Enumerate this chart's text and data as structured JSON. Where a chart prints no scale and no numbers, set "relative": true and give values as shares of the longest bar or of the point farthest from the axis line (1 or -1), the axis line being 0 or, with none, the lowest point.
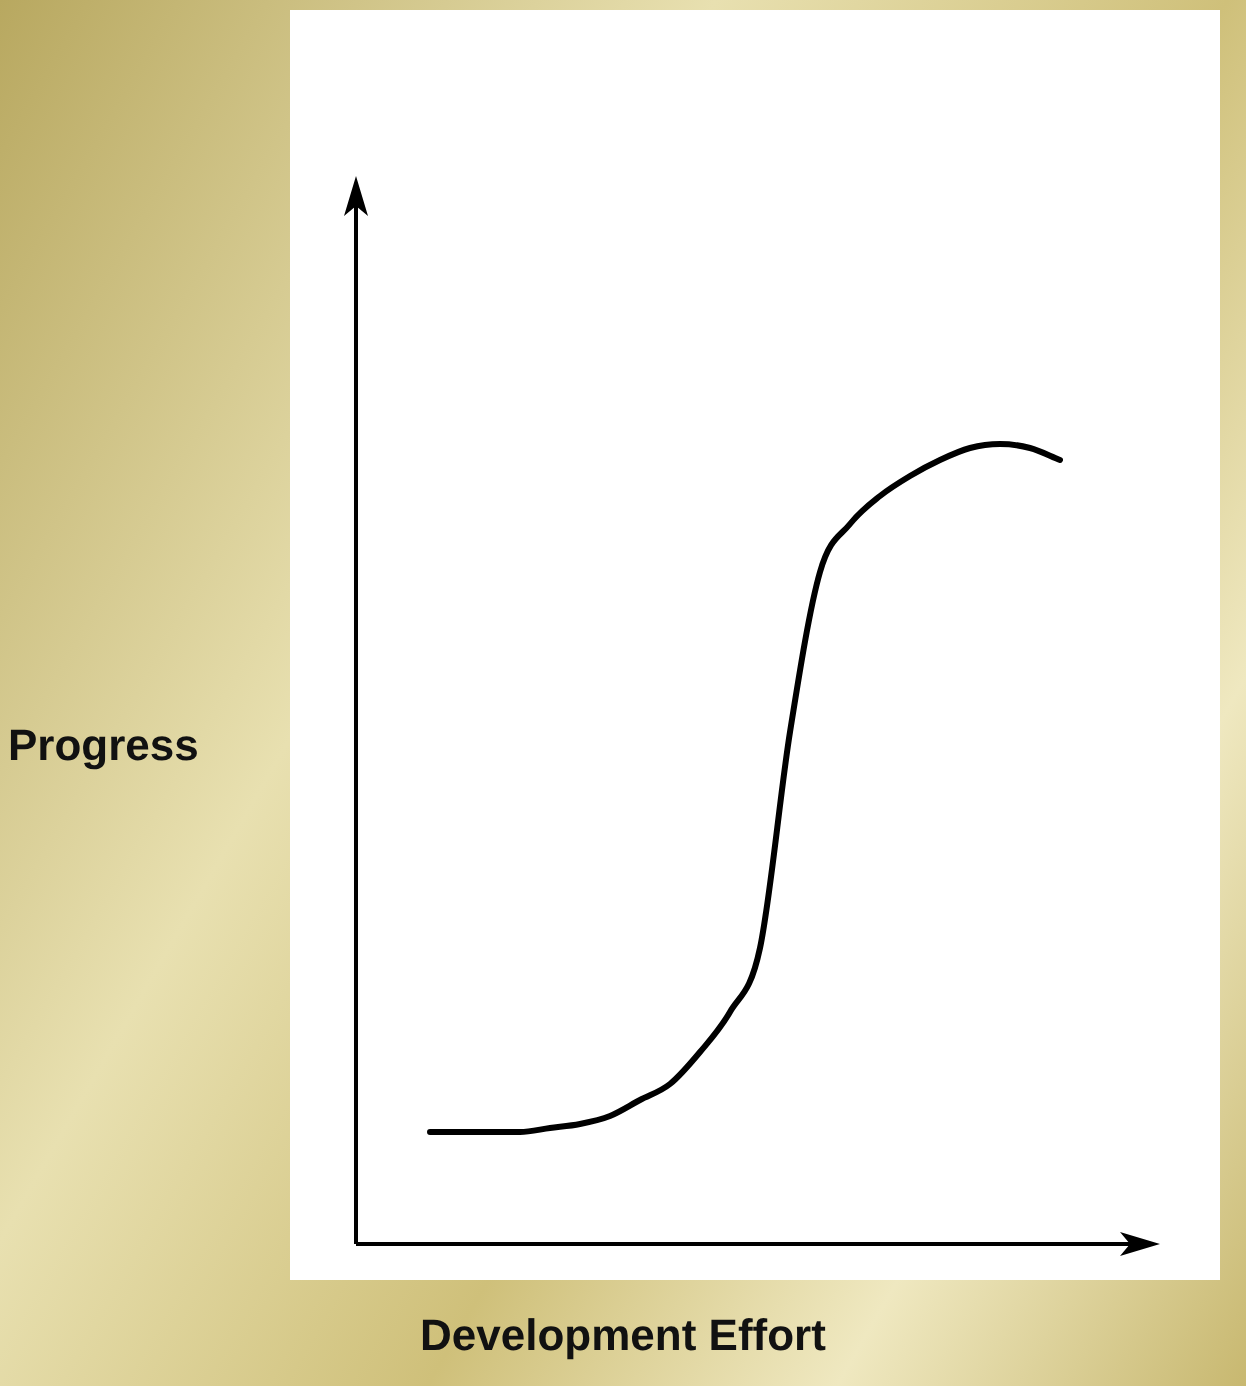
{
  "chart_data": {
    "type": "line",
    "xlabel": "Development Effort",
    "ylabel": "Progress",
    "relative": true,
    "marker": "none",
    "line_style": "solid",
    "categories": [
      null,
      null,
      null,
      null,
      null,
      null,
      null,
      null,
      null,
      null,
      null,
      null,
      null,
      null,
      null,
      null,
      null,
      null,
      null,
      null,
      null,
      null
    ],
    "series": [
      {
        "color": "#000000",
        "values": [
          0.14,
          0.14,
          0.14,
          0.14,
          0.145,
          0.15,
          0.16,
          0.18,
          0.2,
          0.24,
          0.29,
          0.37,
          0.64,
          0.84,
          0.9,
          0.935,
          0.96,
          0.98,
          0.995,
          1,
          0.995,
          0.98
        ]
      }
    ]
  }
}
